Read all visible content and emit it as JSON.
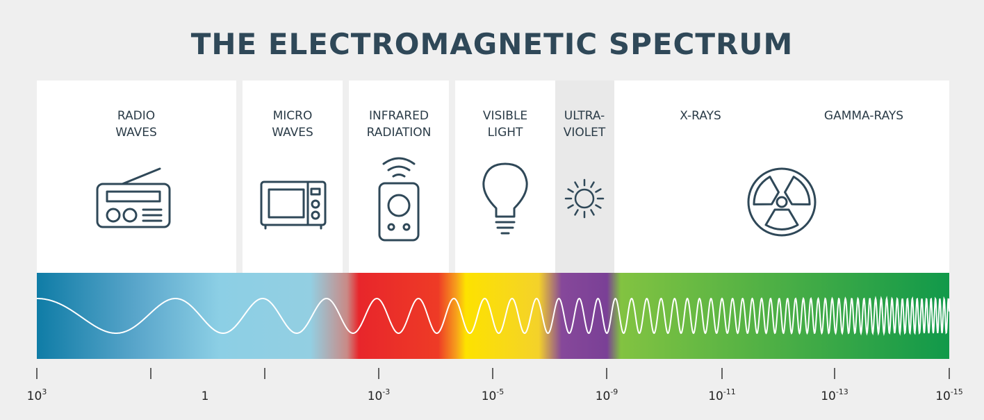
{
  "title": "THE ELECTROMAGNETIC SPECTRUM",
  "bands": [
    {
      "lines": [
        "RADIO",
        "WAVES"
      ]
    },
    {
      "lines": [
        "MICRO",
        "WAVES"
      ]
    },
    {
      "lines": [
        "INFRARED",
        "RADIATION"
      ]
    },
    {
      "lines": [
        "VISIBLE",
        "LIGHT"
      ]
    },
    {
      "lines": [
        "ULTRA-",
        "VIOLET"
      ]
    },
    {
      "lines": [
        "X-RAYS"
      ]
    },
    {
      "lines": [
        "GAMMA-RAYS"
      ]
    }
  ],
  "scale": [
    {
      "base": "10",
      "exponent": "3"
    },
    {
      "base": "1"
    },
    {
      "base": "10",
      "exponent": "-3"
    },
    {
      "base": "10",
      "exponent": "-5"
    },
    {
      "base": "10",
      "exponent": "-9"
    },
    {
      "base": "10",
      "exponent": "-11"
    },
    {
      "base": "10",
      "exponent": "-13"
    },
    {
      "base": "10",
      "exponent": "-15"
    }
  ]
}
